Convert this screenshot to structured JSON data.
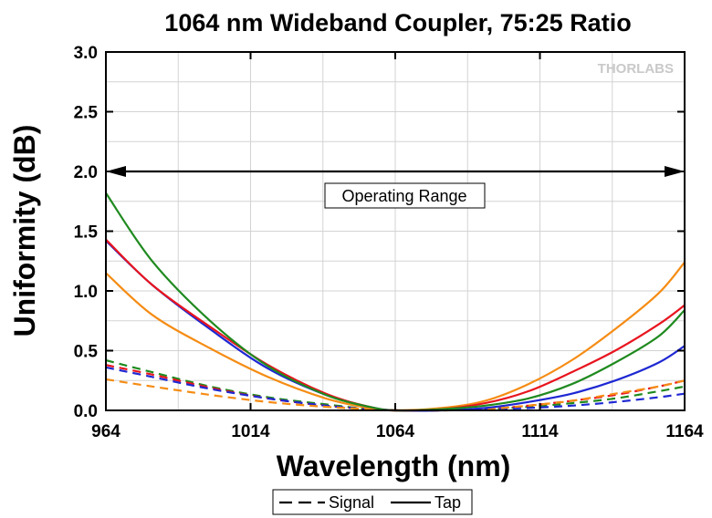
{
  "chart_data": {
    "type": "line",
    "title": "1064 nm Wideband Coupler, 75:25 Ratio",
    "xlabel": "Wavelength (nm)",
    "ylabel": "Uniformity (dB)",
    "xlim": [
      964,
      1164
    ],
    "ylim": [
      0.0,
      3.0
    ],
    "xticks": [
      964,
      1014,
      1064,
      1114,
      1164
    ],
    "yticks": [
      0.0,
      0.5,
      1.0,
      1.5,
      2.0,
      2.5,
      3.0
    ],
    "ytick_labels": [
      "0.0",
      "0.5",
      "1.0",
      "1.5",
      "2.0",
      "2.5",
      "3.0"
    ],
    "grid": true,
    "logo": "THORLABS",
    "annotation": {
      "text": "Operating Range",
      "range": [
        964,
        1164
      ],
      "y": 2.0
    },
    "legend": {
      "placement": "bottom",
      "entries": [
        {
          "label": "Signal",
          "style": "dashed"
        },
        {
          "label": "Tap",
          "style": "solid"
        }
      ]
    },
    "series": [
      {
        "name": "Tap - green",
        "color": "#1f8a1f",
        "style": "solid",
        "x": [
          964,
          980,
          1000,
          1020,
          1040,
          1055,
          1064,
          1080,
          1095,
          1110,
          1125,
          1140,
          1155,
          1164
        ],
        "y": [
          1.82,
          1.25,
          0.75,
          0.37,
          0.13,
          0.03,
          0.0,
          0.01,
          0.04,
          0.1,
          0.22,
          0.4,
          0.62,
          0.84
        ]
      },
      {
        "name": "Tap - red",
        "color": "#e8141e",
        "style": "solid",
        "x": [
          964,
          980,
          1000,
          1020,
          1040,
          1055,
          1064,
          1080,
          1095,
          1110,
          1125,
          1140,
          1155,
          1164
        ],
        "y": [
          1.43,
          1.05,
          0.7,
          0.38,
          0.14,
          0.03,
          0.0,
          0.01,
          0.06,
          0.16,
          0.32,
          0.5,
          0.72,
          0.88
        ]
      },
      {
        "name": "Tap - blue",
        "color": "#1e28d2",
        "style": "solid",
        "x": [
          964,
          980,
          1000,
          1020,
          1040,
          1055,
          1064,
          1080,
          1095,
          1110,
          1125,
          1140,
          1155,
          1164
        ],
        "y": [
          1.42,
          1.05,
          0.68,
          0.35,
          0.13,
          0.03,
          0.0,
          0.0,
          0.02,
          0.07,
          0.14,
          0.25,
          0.4,
          0.54
        ]
      },
      {
        "name": "Tap - orange",
        "color": "#f58c14",
        "style": "solid",
        "x": [
          964,
          980,
          1000,
          1020,
          1040,
          1055,
          1064,
          1080,
          1095,
          1110,
          1125,
          1140,
          1155,
          1164
        ],
        "y": [
          1.15,
          0.8,
          0.52,
          0.28,
          0.1,
          0.02,
          0.0,
          0.02,
          0.08,
          0.22,
          0.42,
          0.68,
          0.98,
          1.24
        ]
      },
      {
        "name": "Signal - green",
        "color": "#1f8a1f",
        "style": "dashed",
        "x": [
          964,
          980,
          1000,
          1020,
          1040,
          1055,
          1064,
          1080,
          1095,
          1110,
          1125,
          1140,
          1155,
          1164
        ],
        "y": [
          0.42,
          0.32,
          0.2,
          0.11,
          0.05,
          0.01,
          0.0,
          0.0,
          0.01,
          0.03,
          0.06,
          0.1,
          0.16,
          0.2
        ]
      },
      {
        "name": "Signal - red",
        "color": "#e8141e",
        "style": "dashed",
        "x": [
          964,
          980,
          1000,
          1020,
          1040,
          1055,
          1064,
          1080,
          1095,
          1110,
          1125,
          1140,
          1155,
          1164
        ],
        "y": [
          0.38,
          0.3,
          0.19,
          0.1,
          0.04,
          0.01,
          0.0,
          0.0,
          0.01,
          0.04,
          0.08,
          0.13,
          0.2,
          0.25
        ]
      },
      {
        "name": "Signal - blue",
        "color": "#1e28d2",
        "style": "dashed",
        "x": [
          964,
          980,
          1000,
          1020,
          1040,
          1055,
          1064,
          1080,
          1095,
          1110,
          1125,
          1140,
          1155,
          1164
        ],
        "y": [
          0.36,
          0.28,
          0.18,
          0.1,
          0.04,
          0.01,
          0.0,
          0.0,
          0.01,
          0.02,
          0.04,
          0.07,
          0.11,
          0.14
        ]
      },
      {
        "name": "Signal - orange",
        "color": "#f58c14",
        "style": "dashed",
        "x": [
          964,
          980,
          1000,
          1020,
          1040,
          1055,
          1064,
          1080,
          1095,
          1110,
          1125,
          1140,
          1155,
          1164
        ],
        "y": [
          0.26,
          0.2,
          0.13,
          0.07,
          0.03,
          0.01,
          0.0,
          0.0,
          0.01,
          0.04,
          0.08,
          0.14,
          0.2,
          0.25
        ]
      }
    ]
  }
}
